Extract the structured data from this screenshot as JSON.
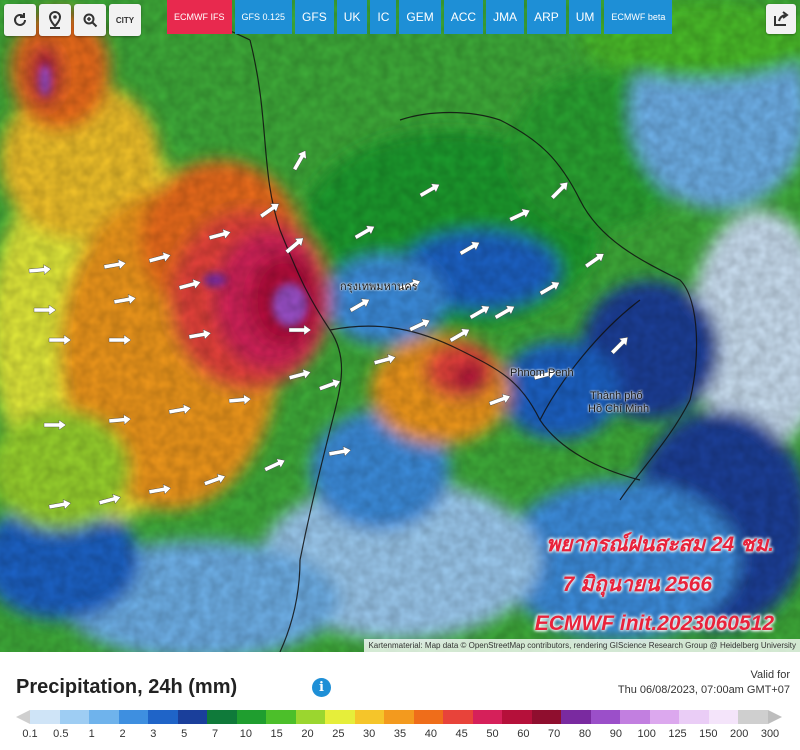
{
  "toolbar": {
    "buttons": [
      "refresh-icon",
      "location-pin-icon",
      "zoom-icon"
    ],
    "city_label": "CITY"
  },
  "models": [
    {
      "label": "ECMWF IFS",
      "active": true
    },
    {
      "label": "GFS 0.125",
      "active": false
    },
    {
      "label": "GFS",
      "active": false
    },
    {
      "label": "UK",
      "active": false
    },
    {
      "label": "IC",
      "active": false
    },
    {
      "label": "GEM",
      "active": false
    },
    {
      "label": "ACC",
      "active": false
    },
    {
      "label": "JMA",
      "active": false
    },
    {
      "label": "ARP",
      "active": false
    },
    {
      "label": "UM",
      "active": false
    },
    {
      "label": "ECMWF beta",
      "active": false
    }
  ],
  "map": {
    "places": {
      "bangkok": "กรุงเทพมหานคร",
      "phnom_penh": "Phnom Penh",
      "hcmc_line1": "Thành phố",
      "hcmc_line2": "Hồ Chí Minh"
    },
    "overlay": {
      "line1": "พยากรณ์ฝนสะสม 24 ชม.",
      "line2": "7 มิถุนายน 2566",
      "line3": "ECMWF init.2023060512"
    },
    "attribution": "Kartenmaterial: Map data © OpenStreetMap contributors, rendering GIScience Research Group @ Heidelberg University"
  },
  "legend": {
    "title": "Precipitation, 24h (mm)",
    "valid_label": "Valid for",
    "valid_time": "Thu 06/08/2023, 07:00am GMT+07",
    "ticks": [
      "0.1",
      "0.5",
      "1",
      "2",
      "3",
      "5",
      "7",
      "10",
      "15",
      "20",
      "25",
      "30",
      "35",
      "40",
      "45",
      "50",
      "60",
      "70",
      "80",
      "90",
      "100",
      "125",
      "150",
      "200",
      "300"
    ],
    "colors": [
      "#cfe4f7",
      "#9ecdf3",
      "#6fb3ec",
      "#3e8fe0",
      "#1f64c8",
      "#1a3f9b",
      "#0f7a3a",
      "#1f9e2f",
      "#4cbf2a",
      "#9bd62f",
      "#e6ee3a",
      "#f5c52a",
      "#f39a1e",
      "#ef6d1a",
      "#e8433a",
      "#d6205a",
      "#b5103a",
      "#8f0e2e",
      "#7a2aa0",
      "#9b4fc9",
      "#c27fe0",
      "#dca8ee",
      "#eacdf6",
      "#f4e4fa",
      "#cfcfcf"
    ]
  }
}
